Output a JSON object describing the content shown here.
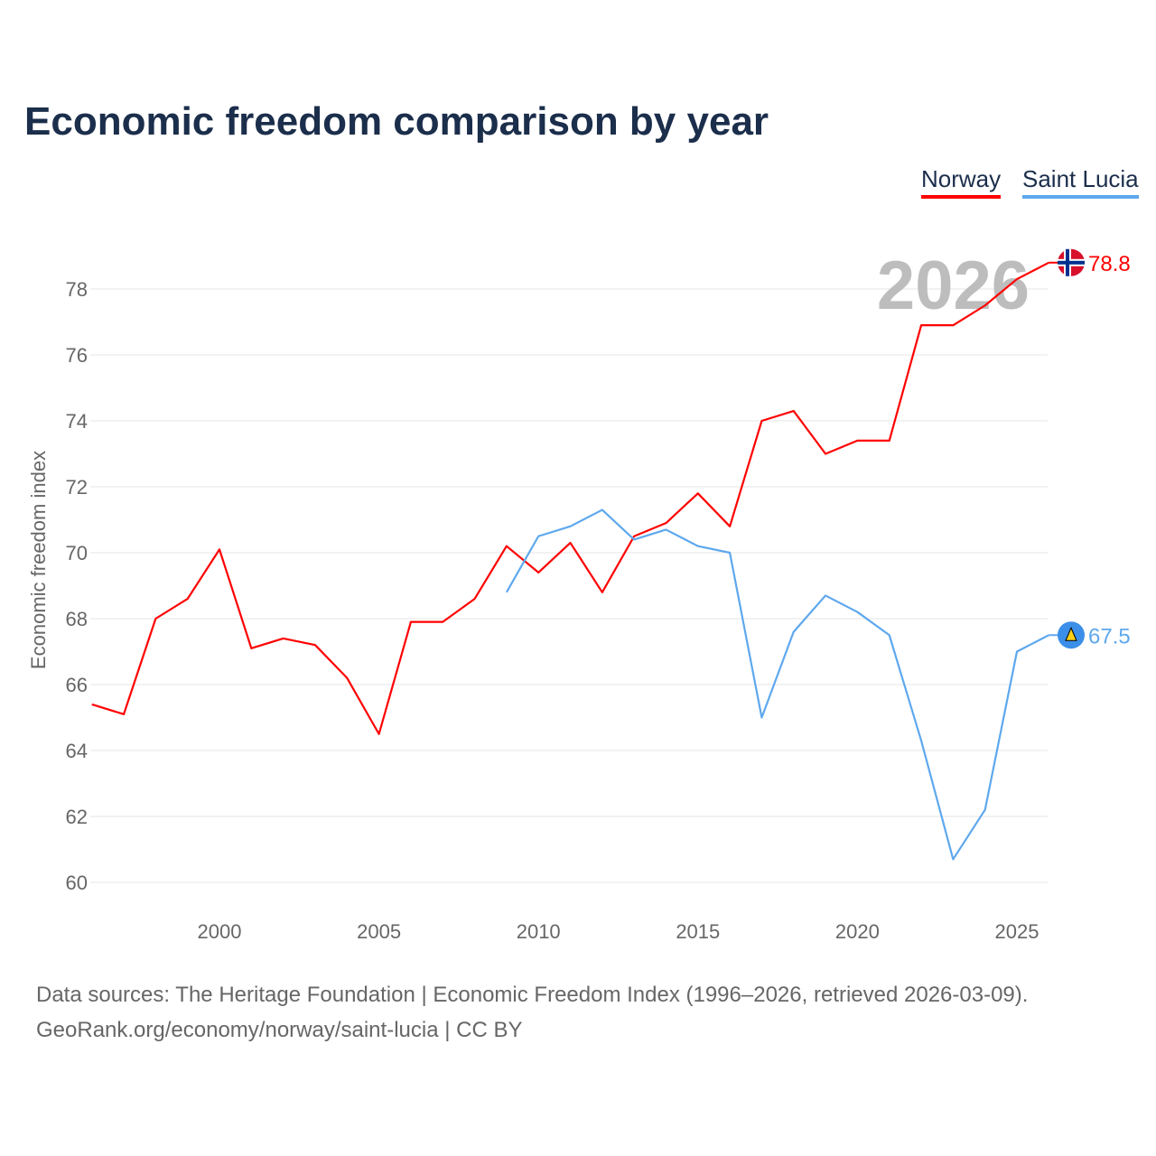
{
  "chart_data": {
    "type": "line",
    "title": "Economic freedom comparison by year",
    "ylabel": "Economic freedom index",
    "xlabel": "",
    "ylim": [
      59.2,
      79.5
    ],
    "xlim": [
      1996,
      2026
    ],
    "yticks": [
      60,
      62,
      64,
      66,
      68,
      70,
      72,
      74,
      76,
      78
    ],
    "xticks": [
      2000,
      2005,
      2010,
      2015,
      2020,
      2025
    ],
    "grid": true,
    "legend_position": "top-right",
    "year_watermark": "2026",
    "series": [
      {
        "name": "Norway",
        "color": "#ff0000",
        "end_label": "78.8",
        "x": [
          1996,
          1997,
          1998,
          1999,
          2000,
          2001,
          2002,
          2003,
          2004,
          2005,
          2006,
          2007,
          2008,
          2009,
          2010,
          2011,
          2012,
          2013,
          2014,
          2015,
          2016,
          2017,
          2018,
          2019,
          2020,
          2021,
          2022,
          2023,
          2024,
          2025,
          2026
        ],
        "values": [
          65.4,
          65.1,
          68.0,
          68.6,
          70.1,
          67.1,
          67.4,
          67.2,
          66.2,
          64.5,
          67.9,
          67.9,
          68.6,
          70.2,
          69.4,
          70.3,
          68.8,
          70.5,
          70.9,
          71.8,
          70.8,
          74.0,
          74.3,
          73.0,
          73.4,
          73.4,
          76.9,
          76.9,
          77.5,
          78.3,
          78.8
        ]
      },
      {
        "name": "Saint Lucia",
        "color": "#5ea8ee",
        "end_label": "67.5",
        "x": [
          2009,
          2010,
          2011,
          2012,
          2013,
          2014,
          2015,
          2016,
          2017,
          2018,
          2019,
          2020,
          2021,
          2022,
          2023,
          2024,
          2025,
          2026
        ],
        "values": [
          68.8,
          70.5,
          70.8,
          71.3,
          70.4,
          70.7,
          70.2,
          70.0,
          65.0,
          67.6,
          68.7,
          68.2,
          67.5,
          64.3,
          60.7,
          62.2,
          67.0,
          67.5
        ]
      }
    ]
  },
  "footer": {
    "line1": "Data sources: The Heritage Foundation | Economic Freedom Index (1996–2026, retrieved 2026-03-09).",
    "line2": "GeoRank.org/economy/norway/saint-lucia | CC BY"
  }
}
